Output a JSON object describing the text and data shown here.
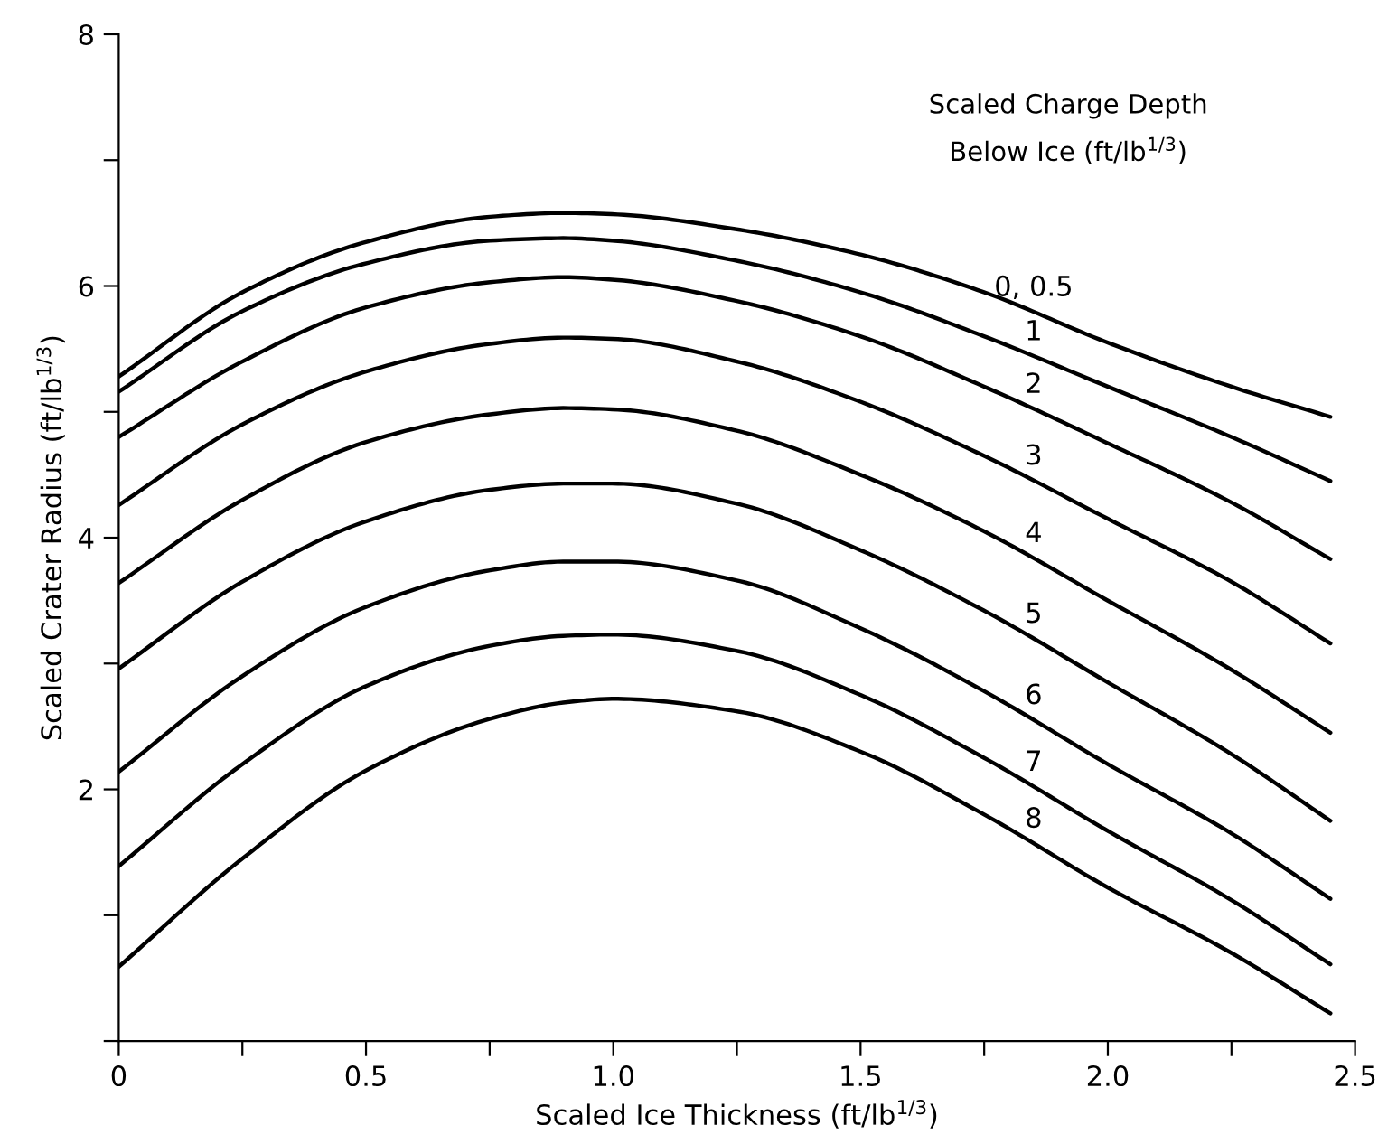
{
  "chart_data": {
    "type": "line",
    "xlabel": "Scaled Ice Thickness (ft/lb$^{1/3}$)",
    "ylabel": "Scaled Crater Radius (ft/lb$^{1/3}$)",
    "legend_title": "Scaled Charge Depth\nBelow Ice (ft/lb$^{1/3}$)",
    "x": [
      0,
      0.25,
      0.5,
      0.75,
      0.9,
      1.0,
      1.25,
      1.5,
      1.75,
      2.0,
      2.25,
      2.45
    ],
    "series": [
      {
        "name": "0, 0.5",
        "color": "#000000",
        "values": [
          5.28,
          5.95,
          6.35,
          6.55,
          6.58,
          6.57,
          6.45,
          6.25,
          5.95,
          5.55,
          5.2,
          4.96
        ]
      },
      {
        "name": "1",
        "color": "#000000",
        "values": [
          5.16,
          5.8,
          6.18,
          6.36,
          6.38,
          6.36,
          6.2,
          5.95,
          5.6,
          5.2,
          4.8,
          4.45
        ]
      },
      {
        "name": "2",
        "color": "#000000",
        "values": [
          4.8,
          5.4,
          5.83,
          6.03,
          6.07,
          6.05,
          5.88,
          5.6,
          5.2,
          4.75,
          4.28,
          3.83
        ]
      },
      {
        "name": "3",
        "color": "#000000",
        "values": [
          4.26,
          4.9,
          5.32,
          5.54,
          5.59,
          5.58,
          5.4,
          5.08,
          4.65,
          4.15,
          3.65,
          3.16
        ]
      },
      {
        "name": "4",
        "color": "#000000",
        "values": [
          3.64,
          4.3,
          4.76,
          4.98,
          5.03,
          5.02,
          4.85,
          4.5,
          4.05,
          3.5,
          2.95,
          2.45
        ]
      },
      {
        "name": "5",
        "color": "#000000",
        "values": [
          2.96,
          3.65,
          4.13,
          4.38,
          4.43,
          4.43,
          4.27,
          3.9,
          3.42,
          2.85,
          2.28,
          1.75
        ]
      },
      {
        "name": "6",
        "color": "#000000",
        "values": [
          2.14,
          2.9,
          3.45,
          3.74,
          3.81,
          3.81,
          3.66,
          3.28,
          2.78,
          2.2,
          1.65,
          1.13
        ]
      },
      {
        "name": "7",
        "color": "#000000",
        "values": [
          1.39,
          2.2,
          2.82,
          3.14,
          3.22,
          3.23,
          3.1,
          2.75,
          2.25,
          1.67,
          1.12,
          0.61
        ]
      },
      {
        "name": "8",
        "color": "#000000",
        "values": [
          0.59,
          1.45,
          2.15,
          2.56,
          2.69,
          2.72,
          2.62,
          2.3,
          1.8,
          1.22,
          0.7,
          0.22
        ]
      }
    ],
    "xlim": [
      0,
      2.5
    ],
    "ylim": [
      0,
      8
    ],
    "xticks": [
      0,
      {
        "value": 0.25,
        "label": null
      },
      0.5,
      {
        "value": 0.75,
        "label": null
      },
      {
        "value": 1.0,
        "label": "1.0"
      },
      {
        "value": 1.25,
        "label": null
      },
      1.5,
      {
        "value": 1.75,
        "label": null
      },
      {
        "value": 2.0,
        "label": "2.0"
      },
      {
        "value": 2.25,
        "label": null
      },
      2.5
    ],
    "yticks": [
      {
        "value": 0,
        "label": null
      },
      {
        "value": 1,
        "label": null
      },
      2,
      {
        "value": 3,
        "label": null
      },
      4,
      {
        "value": 5,
        "label": null
      },
      6,
      {
        "value": 7,
        "label": null
      },
      8
    ],
    "grid": false,
    "legend": false,
    "marker": "none",
    "line_style": "solid"
  }
}
